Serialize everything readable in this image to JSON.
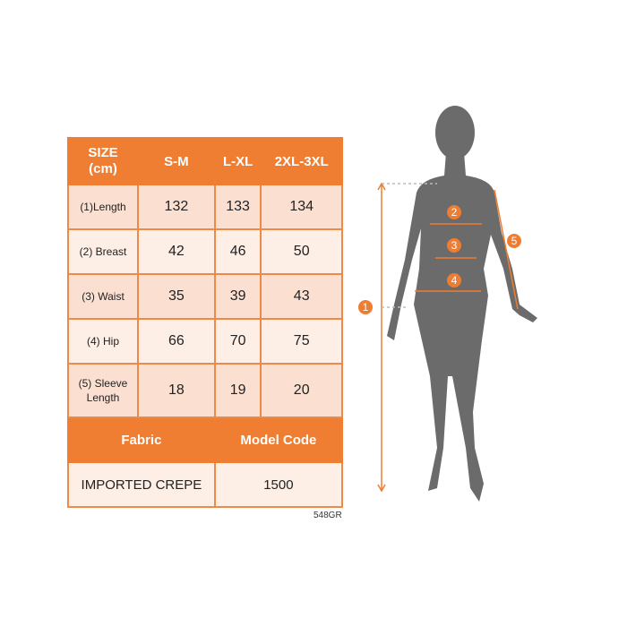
{
  "table": {
    "header": [
      "SIZE\n(cm)",
      "S-M",
      "L-XL",
      "2XL-3XL"
    ],
    "rows": [
      {
        "label": "(1)Length",
        "values": [
          "132",
          "133",
          "134"
        ]
      },
      {
        "label": "(2) Breast",
        "values": [
          "42",
          "46",
          "50"
        ]
      },
      {
        "label": "(3) Waist",
        "values": [
          "35",
          "39",
          "43"
        ]
      },
      {
        "label": "(4) Hip",
        "values": [
          "66",
          "70",
          "75"
        ]
      },
      {
        "label": "(5) Sleeve Length",
        "values": [
          "18",
          "19",
          "20"
        ]
      }
    ],
    "fabric_label": "Fabric",
    "model_code_label": "Model Code",
    "fabric_value": "IMPORTED CREPE",
    "model_code_value": "1500"
  },
  "product_code": "548GR",
  "figure": {
    "markers": [
      "1",
      "2",
      "3",
      "4",
      "5"
    ],
    "accent": "#ee7d31",
    "silhouette": "#6b6b6b"
  }
}
